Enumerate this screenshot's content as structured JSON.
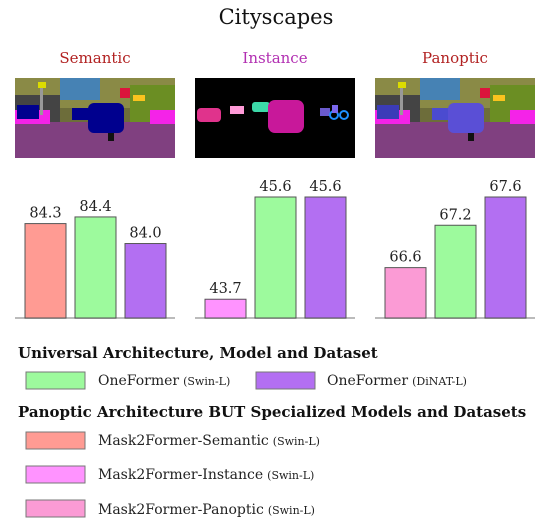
{
  "title": "Cityscapes",
  "panels": [
    {
      "name": "Semantic",
      "color": "#b22222",
      "image": "semantic-segmentation-image"
    },
    {
      "name": "Instance",
      "color": "#b22fb2",
      "image": "instance-segmentation-image"
    },
    {
      "name": "Panoptic",
      "color": "#b22222",
      "image": "panoptic-segmentation-image"
    }
  ],
  "chart_data": {
    "type": "bar",
    "title": "Cityscapes",
    "categories": [
      "Semantic",
      "Instance",
      "Panoptic"
    ],
    "series": [
      {
        "panel": "Semantic",
        "bars": [
          {
            "label": "Mask2Former-Semantic",
            "value": 84.3,
            "value_label": "84.3",
            "color": "#ff9b93"
          },
          {
            "label": "OneFormer (Swin-L)",
            "value": 84.4,
            "value_label": "84.4",
            "color": "#9dfa9d"
          },
          {
            "label": "OneFormer (DiNAT-L)",
            "value": 84.0,
            "value_label": "84.0",
            "color": "#b36ff2"
          }
        ],
        "ylim": [
          83.0,
          84.7
        ]
      },
      {
        "panel": "Instance",
        "bars": [
          {
            "label": "Mask2Former-Instance",
            "value": 43.7,
            "value_label": "43.7",
            "color": "#ff93ff"
          },
          {
            "label": "OneFormer (Swin-L)",
            "value": 45.6,
            "value_label": "45.6",
            "color": "#9dfa9d"
          },
          {
            "label": "OneFormer (DiNAT-L)",
            "value": 45.6,
            "value_label": "45.6",
            "color": "#b36ff2"
          }
        ],
        "ylim": [
          43.5,
          45.6
        ]
      },
      {
        "panel": "Panoptic",
        "bars": [
          {
            "label": "Mask2Former-Panoptic",
            "value": 66.6,
            "value_label": "66.6",
            "color": "#fb9bd5"
          },
          {
            "label": "OneFormer (Swin-L)",
            "value": 67.2,
            "value_label": "67.2",
            "color": "#9dfa9d"
          },
          {
            "label": "OneFormer (DiNAT-L)",
            "value": 67.6,
            "value_label": "67.6",
            "color": "#b36ff2"
          }
        ],
        "ylim": [
          66.0,
          67.6
        ]
      }
    ],
    "legend_placement": "bottom"
  },
  "legend": {
    "group1_title": "Universal Architecture, Model and Dataset",
    "group1": [
      {
        "name": "OneFormer",
        "suffix": "(Swin-L)",
        "color": "#9dfa9d"
      },
      {
        "name": "OneFormer",
        "suffix": "(DiNAT-L)",
        "color": "#b36ff2"
      }
    ],
    "group2_title": "Panoptic Architecture BUT Specialized Models and Datasets",
    "group2": [
      {
        "name": "Mask2Former-Semantic",
        "suffix": "(Swin-L)",
        "color": "#ff9b93"
      },
      {
        "name": "Mask2Former-Instance",
        "suffix": "(Swin-L)",
        "color": "#ff93ff"
      },
      {
        "name": "Mask2Former-Panoptic",
        "suffix": "(Swin-L)",
        "color": "#fb9bd5"
      }
    ]
  }
}
